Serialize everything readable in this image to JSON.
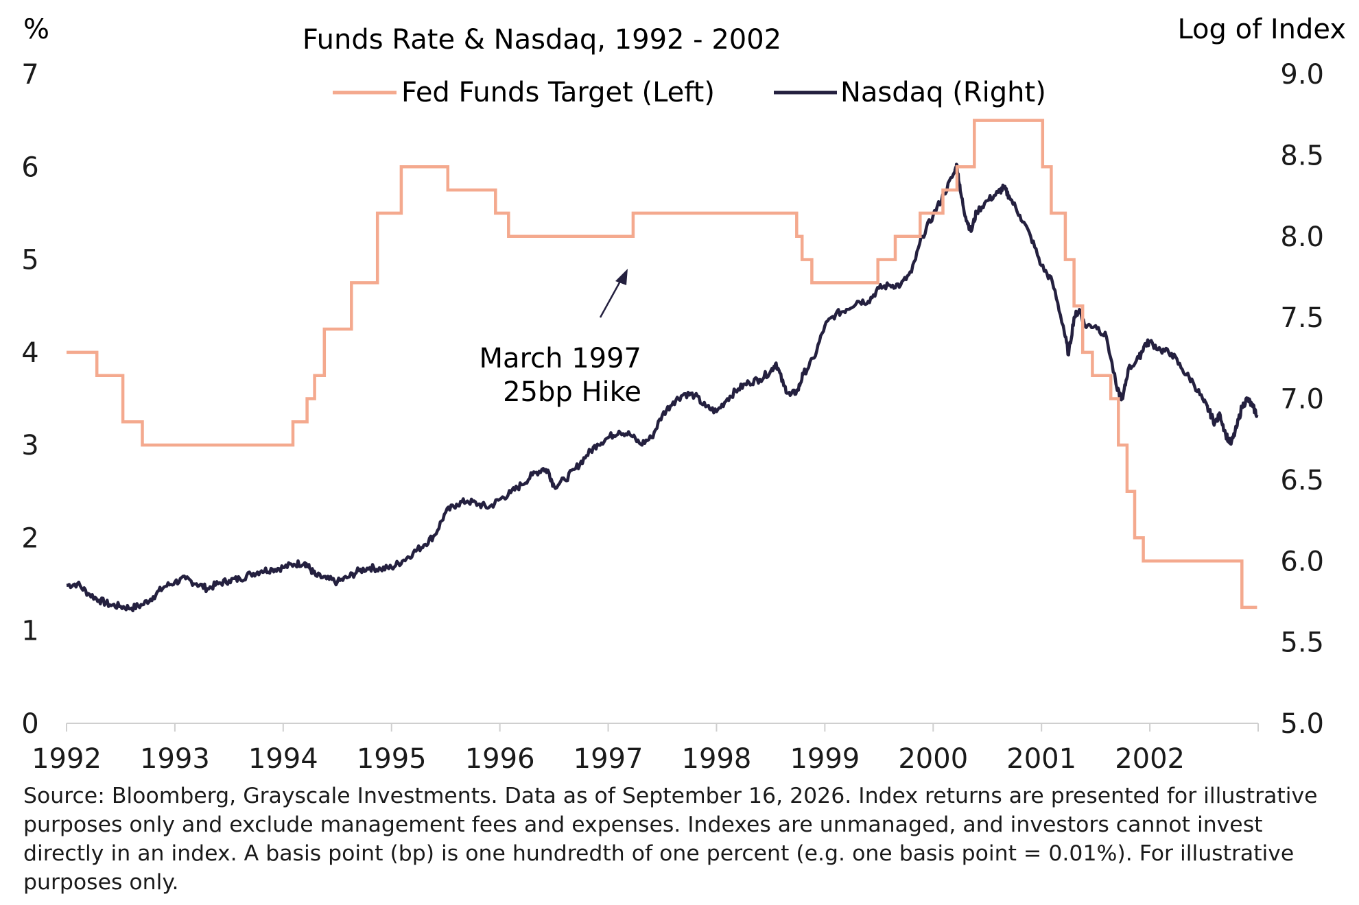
{
  "chart_data": {
    "type": "line",
    "title": "Funds Rate & Nasdaq, 1992 - 2002",
    "left_axis": {
      "unit_label": "%",
      "ylim": [
        0,
        7
      ],
      "ticks": [
        0,
        1,
        2,
        3,
        4,
        5,
        6,
        7
      ]
    },
    "right_axis": {
      "unit_label": "Log of Index",
      "ylim": [
        5.0,
        9.0
      ],
      "ticks": [
        "5.0",
        "5.5",
        "6.0",
        "6.5",
        "7.0",
        "7.5",
        "8.0",
        "8.5",
        "9.0"
      ]
    },
    "x_axis": {
      "xlim": [
        1992.0,
        2003.0
      ],
      "ticks": [
        "1992",
        "1993",
        "1994",
        "1995",
        "1996",
        "1997",
        "1998",
        "1999",
        "2000",
        "2001",
        "2002"
      ]
    },
    "grid": false,
    "legend_position": "top",
    "series": [
      {
        "name": "Fed Funds Target (Left)",
        "axis": "left",
        "step": true,
        "color": "#f4a98e",
        "points": [
          [
            1992.0,
            4.0
          ],
          [
            1992.28,
            3.75
          ],
          [
            1992.52,
            3.25
          ],
          [
            1992.7,
            3.0
          ],
          [
            1994.09,
            3.25
          ],
          [
            1994.22,
            3.5
          ],
          [
            1994.29,
            3.75
          ],
          [
            1994.38,
            4.25
          ],
          [
            1994.63,
            4.75
          ],
          [
            1994.87,
            5.5
          ],
          [
            1995.09,
            6.0
          ],
          [
            1995.52,
            5.75
          ],
          [
            1995.96,
            5.5
          ],
          [
            1996.08,
            5.25
          ],
          [
            1997.23,
            5.5
          ],
          [
            1998.74,
            5.25
          ],
          [
            1998.79,
            5.0
          ],
          [
            1998.88,
            4.75
          ],
          [
            1999.49,
            5.0
          ],
          [
            1999.65,
            5.25
          ],
          [
            1999.88,
            5.5
          ],
          [
            2000.09,
            5.75
          ],
          [
            2000.22,
            6.0
          ],
          [
            2000.38,
            6.5
          ],
          [
            2001.01,
            6.0
          ],
          [
            2001.09,
            5.5
          ],
          [
            2001.22,
            5.0
          ],
          [
            2001.3,
            4.5
          ],
          [
            2001.38,
            4.0
          ],
          [
            2001.47,
            3.75
          ],
          [
            2001.64,
            3.5
          ],
          [
            2001.71,
            3.0
          ],
          [
            2001.79,
            2.5
          ],
          [
            2001.86,
            2.0
          ],
          [
            2001.94,
            1.75
          ],
          [
            2002.85,
            1.25
          ],
          [
            2002.99,
            1.25
          ]
        ]
      },
      {
        "name": "Nasdaq (Right)",
        "axis": "right",
        "color": "#24203f",
        "points": [
          [
            1992.0,
            5.85
          ],
          [
            1992.1,
            5.86
          ],
          [
            1992.2,
            5.8
          ],
          [
            1992.3,
            5.76
          ],
          [
            1992.4,
            5.73
          ],
          [
            1992.5,
            5.72
          ],
          [
            1992.6,
            5.71
          ],
          [
            1992.7,
            5.73
          ],
          [
            1992.8,
            5.78
          ],
          [
            1992.9,
            5.84
          ],
          [
            1993.0,
            5.87
          ],
          [
            1993.1,
            5.89
          ],
          [
            1993.2,
            5.86
          ],
          [
            1993.3,
            5.83
          ],
          [
            1993.4,
            5.86
          ],
          [
            1993.5,
            5.88
          ],
          [
            1993.6,
            5.89
          ],
          [
            1993.7,
            5.92
          ],
          [
            1993.8,
            5.94
          ],
          [
            1993.9,
            5.95
          ],
          [
            1994.0,
            5.96
          ],
          [
            1994.1,
            5.98
          ],
          [
            1994.2,
            5.99
          ],
          [
            1994.25,
            5.95
          ],
          [
            1994.3,
            5.91
          ],
          [
            1994.4,
            5.89
          ],
          [
            1994.5,
            5.87
          ],
          [
            1994.6,
            5.9
          ],
          [
            1994.7,
            5.94
          ],
          [
            1994.8,
            5.96
          ],
          [
            1994.9,
            5.95
          ],
          [
            1995.0,
            5.96
          ],
          [
            1995.1,
            6.0
          ],
          [
            1995.2,
            6.05
          ],
          [
            1995.3,
            6.1
          ],
          [
            1995.4,
            6.16
          ],
          [
            1995.5,
            6.3
          ],
          [
            1995.6,
            6.35
          ],
          [
            1995.7,
            6.37
          ],
          [
            1995.8,
            6.35
          ],
          [
            1995.9,
            6.33
          ],
          [
            1996.0,
            6.38
          ],
          [
            1996.1,
            6.42
          ],
          [
            1996.2,
            6.47
          ],
          [
            1996.3,
            6.53
          ],
          [
            1996.4,
            6.57
          ],
          [
            1996.45,
            6.55
          ],
          [
            1996.5,
            6.46
          ],
          [
            1996.6,
            6.5
          ],
          [
            1996.7,
            6.57
          ],
          [
            1996.8,
            6.65
          ],
          [
            1996.9,
            6.72
          ],
          [
            1997.0,
            6.76
          ],
          [
            1997.1,
            6.8
          ],
          [
            1997.2,
            6.78
          ],
          [
            1997.3,
            6.72
          ],
          [
            1997.4,
            6.76
          ],
          [
            1997.5,
            6.9
          ],
          [
            1997.6,
            6.98
          ],
          [
            1997.7,
            7.03
          ],
          [
            1997.8,
            7.02
          ],
          [
            1997.9,
            6.95
          ],
          [
            1998.0,
            6.92
          ],
          [
            1998.1,
            7.0
          ],
          [
            1998.2,
            7.06
          ],
          [
            1998.3,
            7.1
          ],
          [
            1998.4,
            7.12
          ],
          [
            1998.5,
            7.17
          ],
          [
            1998.55,
            7.22
          ],
          [
            1998.62,
            7.08
          ],
          [
            1998.68,
            7.02
          ],
          [
            1998.75,
            7.05
          ],
          [
            1998.8,
            7.15
          ],
          [
            1998.9,
            7.25
          ],
          [
            1999.0,
            7.45
          ],
          [
            1999.1,
            7.52
          ],
          [
            1999.2,
            7.55
          ],
          [
            1999.3,
            7.6
          ],
          [
            1999.4,
            7.6
          ],
          [
            1999.5,
            7.68
          ],
          [
            1999.6,
            7.7
          ],
          [
            1999.7,
            7.7
          ],
          [
            1999.8,
            7.78
          ],
          [
            1999.9,
            8.0
          ],
          [
            2000.0,
            8.13
          ],
          [
            2000.1,
            8.26
          ],
          [
            2000.2,
            8.4
          ],
          [
            2000.22,
            8.44
          ],
          [
            2000.25,
            8.28
          ],
          [
            2000.3,
            8.12
          ],
          [
            2000.35,
            8.03
          ],
          [
            2000.4,
            8.15
          ],
          [
            2000.5,
            8.22
          ],
          [
            2000.6,
            8.27
          ],
          [
            2000.65,
            8.3
          ],
          [
            2000.7,
            8.25
          ],
          [
            2000.8,
            8.13
          ],
          [
            2000.9,
            8.0
          ],
          [
            2001.0,
            7.82
          ],
          [
            2001.1,
            7.72
          ],
          [
            2001.2,
            7.45
          ],
          [
            2001.25,
            7.27
          ],
          [
            2001.3,
            7.5
          ],
          [
            2001.35,
            7.55
          ],
          [
            2001.4,
            7.45
          ],
          [
            2001.5,
            7.45
          ],
          [
            2001.6,
            7.38
          ],
          [
            2001.7,
            7.05
          ],
          [
            2001.75,
            7.0
          ],
          [
            2001.8,
            7.18
          ],
          [
            2001.9,
            7.25
          ],
          [
            2001.95,
            7.33
          ],
          [
            2002.0,
            7.35
          ],
          [
            2002.1,
            7.3
          ],
          [
            2002.2,
            7.28
          ],
          [
            2002.3,
            7.18
          ],
          [
            2002.4,
            7.1
          ],
          [
            2002.5,
            6.98
          ],
          [
            2002.55,
            6.92
          ],
          [
            2002.6,
            6.85
          ],
          [
            2002.65,
            6.9
          ],
          [
            2002.7,
            6.78
          ],
          [
            2002.75,
            6.72
          ],
          [
            2002.8,
            6.82
          ],
          [
            2002.85,
            6.95
          ],
          [
            2002.9,
            7.0
          ],
          [
            2002.95,
            6.95
          ],
          [
            2002.99,
            6.9
          ]
        ]
      }
    ],
    "annotations": [
      {
        "text_lines": [
          "March 1997",
          "25bp Hike"
        ],
        "arrow": true
      }
    ]
  },
  "footer": {
    "source_text": "Source: Bloomberg, Grayscale Investments. Data as of September 16, 2026. Index returns are presented for illustrative purposes only and exclude management fees and expenses. Indexes are unmanaged, and investors cannot invest directly in an index. A basis point (bp) is one hundredth of one percent (e.g. one basis point = 0.01%). For illustrative purposes only."
  }
}
